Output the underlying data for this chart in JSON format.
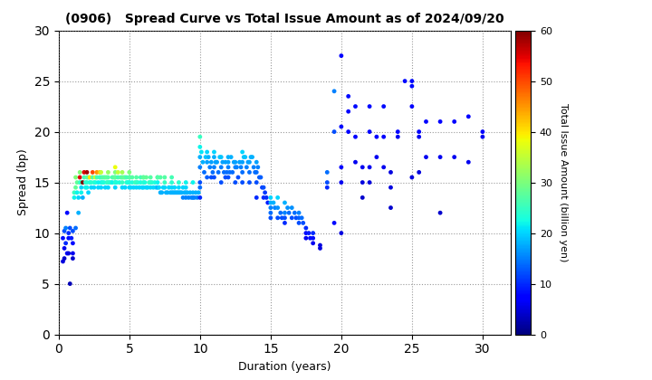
{
  "title": "(0906)   Spread Curve vs Total Issue Amount as of 2024/09/20",
  "xlabel": "Duration (years)",
  "ylabel": "Spread (bp)",
  "colorbar_label": "Total Issue Amount (billion yen)",
  "xlim": [
    0,
    32
  ],
  "ylim": [
    0,
    30
  ],
  "xticks": [
    0,
    5,
    10,
    15,
    20,
    25,
    30
  ],
  "yticks": [
    0,
    5,
    10,
    15,
    20,
    25,
    30
  ],
  "cmap": "jet",
  "clim": [
    0,
    60
  ],
  "colorbar_ticks": [
    0,
    10,
    20,
    30,
    40,
    50,
    60
  ],
  "background_color": "#ffffff",
  "points": [
    [
      0.3,
      7.2,
      5
    ],
    [
      0.3,
      9.5,
      8
    ],
    [
      0.4,
      10.2,
      12
    ],
    [
      0.4,
      8.5,
      6
    ],
    [
      0.4,
      7.5,
      4
    ],
    [
      0.5,
      10.5,
      15
    ],
    [
      0.5,
      9.0,
      10
    ],
    [
      0.6,
      8.0,
      7
    ],
    [
      0.6,
      12.0,
      8
    ],
    [
      0.7,
      10.0,
      10
    ],
    [
      0.7,
      9.5,
      8
    ],
    [
      0.7,
      8.0,
      5
    ],
    [
      0.8,
      5.0,
      3
    ],
    [
      0.8,
      10.5,
      12
    ],
    [
      0.9,
      9.5,
      9
    ],
    [
      1.0,
      10.2,
      12
    ],
    [
      1.0,
      9.0,
      8
    ],
    [
      1.0,
      8.0,
      6
    ],
    [
      1.0,
      7.5,
      4
    ],
    [
      1.1,
      14.0,
      25
    ],
    [
      1.1,
      13.5,
      22
    ],
    [
      1.2,
      10.5,
      14
    ],
    [
      1.2,
      15.5,
      30
    ],
    [
      1.2,
      14.5,
      28
    ],
    [
      1.3,
      15.0,
      28
    ],
    [
      1.3,
      14.0,
      22
    ],
    [
      1.4,
      13.5,
      20
    ],
    [
      1.4,
      12.0,
      18
    ],
    [
      1.5,
      16.0,
      30
    ],
    [
      1.5,
      15.0,
      25
    ],
    [
      1.5,
      15.5,
      55
    ],
    [
      1.6,
      14.0,
      22
    ],
    [
      1.6,
      14.5,
      20
    ],
    [
      1.6,
      15.0,
      25
    ],
    [
      1.7,
      13.5,
      18
    ],
    [
      1.7,
      15.0,
      60
    ],
    [
      1.8,
      15.5,
      26
    ],
    [
      1.8,
      16.0,
      55
    ],
    [
      1.9,
      14.5,
      22
    ],
    [
      1.9,
      15.0,
      24
    ],
    [
      2.0,
      15.5,
      28
    ],
    [
      2.0,
      15.0,
      24
    ],
    [
      2.0,
      14.5,
      22
    ],
    [
      2.0,
      16.0,
      58
    ],
    [
      2.1,
      14.0,
      20
    ],
    [
      2.1,
      15.5,
      27
    ],
    [
      2.2,
      15.0,
      23
    ],
    [
      2.2,
      15.5,
      40
    ],
    [
      2.3,
      14.5,
      20
    ],
    [
      2.3,
      15.0,
      24
    ],
    [
      2.4,
      15.5,
      27
    ],
    [
      2.4,
      16.0,
      50
    ],
    [
      2.5,
      15.0,
      24
    ],
    [
      2.5,
      14.5,
      20
    ],
    [
      2.6,
      15.0,
      23
    ],
    [
      2.6,
      15.5,
      37
    ],
    [
      2.7,
      15.5,
      26
    ],
    [
      2.7,
      16.0,
      45
    ],
    [
      2.8,
      15.0,
      22
    ],
    [
      2.8,
      14.5,
      20
    ],
    [
      2.9,
      15.5,
      25
    ],
    [
      2.9,
      16.0,
      42
    ],
    [
      3.0,
      15.0,
      22
    ],
    [
      3.0,
      15.5,
      25
    ],
    [
      3.0,
      14.5,
      20
    ],
    [
      3.0,
      16.0,
      35
    ],
    [
      3.1,
      15.5,
      27
    ],
    [
      3.1,
      15.0,
      23
    ],
    [
      3.2,
      15.0,
      23
    ],
    [
      3.2,
      15.5,
      27
    ],
    [
      3.3,
      15.5,
      27
    ],
    [
      3.3,
      14.5,
      20
    ],
    [
      3.4,
      15.0,
      24
    ],
    [
      3.4,
      15.5,
      28
    ],
    [
      3.5,
      15.0,
      25
    ],
    [
      3.5,
      15.5,
      27
    ],
    [
      3.5,
      14.5,
      20
    ],
    [
      3.5,
      16.0,
      32
    ],
    [
      3.6,
      15.0,
      24
    ],
    [
      3.7,
      15.0,
      24
    ],
    [
      3.8,
      15.5,
      26
    ],
    [
      3.8,
      15.0,
      22
    ],
    [
      3.9,
      15.5,
      27
    ],
    [
      4.0,
      15.0,
      22
    ],
    [
      4.0,
      15.5,
      25
    ],
    [
      4.0,
      14.5,
      20
    ],
    [
      4.0,
      16.0,
      30
    ],
    [
      4.0,
      15.0,
      24
    ],
    [
      4.0,
      16.5,
      38
    ],
    [
      4.0,
      15.5,
      28
    ],
    [
      4.1,
      15.0,
      23
    ],
    [
      4.2,
      15.5,
      26
    ],
    [
      4.2,
      16.0,
      35
    ],
    [
      4.3,
      15.0,
      23
    ],
    [
      4.4,
      15.5,
      27
    ],
    [
      4.5,
      15.5,
      27
    ],
    [
      4.5,
      14.5,
      20
    ],
    [
      4.5,
      15.0,
      25
    ],
    [
      4.5,
      16.0,
      33
    ],
    [
      4.6,
      15.5,
      28
    ],
    [
      4.7,
      15.5,
      28
    ],
    [
      4.7,
      14.5,
      20
    ],
    [
      4.8,
      15.0,
      24
    ],
    [
      4.8,
      15.5,
      26
    ],
    [
      4.9,
      15.0,
      23
    ],
    [
      5.0,
      15.5,
      26
    ],
    [
      5.0,
      14.5,
      20
    ],
    [
      5.0,
      15.0,
      23
    ],
    [
      5.0,
      16.0,
      30
    ],
    [
      5.0,
      15.5,
      27
    ],
    [
      5.1,
      14.5,
      20
    ],
    [
      5.2,
      15.5,
      27
    ],
    [
      5.2,
      15.0,
      23
    ],
    [
      5.3,
      14.5,
      20
    ],
    [
      5.4,
      15.0,
      25
    ],
    [
      5.5,
      15.0,
      25
    ],
    [
      5.5,
      15.5,
      27
    ],
    [
      5.5,
      14.5,
      20
    ],
    [
      5.6,
      15.0,
      24
    ],
    [
      5.7,
      14.5,
      20
    ],
    [
      5.8,
      15.0,
      23
    ],
    [
      5.8,
      15.5,
      26
    ],
    [
      5.9,
      14.5,
      20
    ],
    [
      6.0,
      15.5,
      26
    ],
    [
      6.0,
      14.5,
      20
    ],
    [
      6.0,
      15.0,
      24
    ],
    [
      6.0,
      15.5,
      28
    ],
    [
      6.1,
      15.0,
      23
    ],
    [
      6.2,
      15.5,
      28
    ],
    [
      6.2,
      14.5,
      20
    ],
    [
      6.3,
      14.5,
      20
    ],
    [
      6.4,
      15.0,
      25
    ],
    [
      6.5,
      15.0,
      25
    ],
    [
      6.5,
      15.5,
      27
    ],
    [
      6.5,
      14.5,
      20
    ],
    [
      6.6,
      15.0,
      24
    ],
    [
      6.7,
      14.5,
      20
    ],
    [
      6.8,
      15.0,
      23
    ],
    [
      6.9,
      14.5,
      20
    ],
    [
      7.0,
      15.5,
      26
    ],
    [
      7.0,
      14.5,
      18
    ],
    [
      7.0,
      15.0,
      22
    ],
    [
      7.0,
      15.5,
      27
    ],
    [
      7.1,
      14.5,
      20
    ],
    [
      7.2,
      15.5,
      27
    ],
    [
      7.2,
      14.0,
      18
    ],
    [
      7.3,
      14.0,
      18
    ],
    [
      7.4,
      14.5,
      20
    ],
    [
      7.5,
      15.0,
      25
    ],
    [
      7.5,
      14.5,
      20
    ],
    [
      7.5,
      15.5,
      27
    ],
    [
      7.6,
      14.0,
      18
    ],
    [
      7.7,
      14.0,
      18
    ],
    [
      7.8,
      14.5,
      20
    ],
    [
      7.9,
      14.0,
      18
    ],
    [
      8.0,
      14.5,
      20
    ],
    [
      8.0,
      14.0,
      18
    ],
    [
      8.0,
      15.0,
      24
    ],
    [
      8.0,
      15.5,
      26
    ],
    [
      8.1,
      14.0,
      18
    ],
    [
      8.2,
      14.5,
      20
    ],
    [
      8.2,
      14.0,
      18
    ],
    [
      8.3,
      14.0,
      18
    ],
    [
      8.4,
      14.0,
      18
    ],
    [
      8.5,
      14.5,
      20
    ],
    [
      8.5,
      14.0,
      18
    ],
    [
      8.5,
      15.0,
      24
    ],
    [
      8.6,
      14.0,
      18
    ],
    [
      8.7,
      14.0,
      18
    ],
    [
      8.8,
      13.5,
      15
    ],
    [
      8.8,
      14.5,
      20
    ],
    [
      8.9,
      14.0,
      18
    ],
    [
      9.0,
      14.0,
      18
    ],
    [
      9.0,
      13.5,
      15
    ],
    [
      9.0,
      14.5,
      20
    ],
    [
      9.0,
      15.0,
      22
    ],
    [
      9.1,
      14.0,
      18
    ],
    [
      9.2,
      13.5,
      15
    ],
    [
      9.3,
      14.0,
      18
    ],
    [
      9.4,
      13.5,
      15
    ],
    [
      9.5,
      13.5,
      15
    ],
    [
      9.5,
      14.0,
      18
    ],
    [
      9.5,
      15.0,
      22
    ],
    [
      9.6,
      13.5,
      15
    ],
    [
      9.7,
      14.0,
      18
    ],
    [
      9.8,
      13.5,
      15
    ],
    [
      9.9,
      14.0,
      18
    ],
    [
      10.0,
      19.5,
      25
    ],
    [
      10.0,
      18.5,
      22
    ],
    [
      10.0,
      17.5,
      18
    ],
    [
      10.0,
      16.5,
      15
    ],
    [
      10.0,
      15.0,
      12
    ],
    [
      10.0,
      13.5,
      10
    ],
    [
      10.0,
      14.5,
      14
    ],
    [
      10.1,
      18.0,
      21
    ],
    [
      10.2,
      17.0,
      18
    ],
    [
      10.3,
      16.0,
      14
    ],
    [
      10.4,
      17.5,
      19
    ],
    [
      10.5,
      18.0,
      20
    ],
    [
      10.5,
      17.0,
      17
    ],
    [
      10.5,
      15.5,
      13
    ],
    [
      10.6,
      17.5,
      18
    ],
    [
      10.7,
      16.5,
      15
    ],
    [
      10.8,
      15.5,
      12
    ],
    [
      10.8,
      17.0,
      17
    ],
    [
      10.9,
      16.0,
      14
    ],
    [
      11.0,
      17.5,
      18
    ],
    [
      11.0,
      16.5,
      15
    ],
    [
      11.0,
      15.5,
      12
    ],
    [
      11.0,
      18.0,
      20
    ],
    [
      11.1,
      17.0,
      17
    ],
    [
      11.2,
      17.0,
      17
    ],
    [
      11.3,
      16.0,
      14
    ],
    [
      11.4,
      17.5,
      19
    ],
    [
      11.5,
      17.5,
      19
    ],
    [
      11.5,
      16.5,
      15
    ],
    [
      11.5,
      15.0,
      12
    ],
    [
      11.6,
      17.0,
      17
    ],
    [
      11.7,
      16.0,
      14
    ],
    [
      11.8,
      15.5,
      12
    ],
    [
      11.8,
      17.0,
      17
    ],
    [
      11.9,
      16.0,
      14
    ],
    [
      12.0,
      17.0,
      17
    ],
    [
      12.0,
      16.5,
      15
    ],
    [
      12.0,
      15.5,
      12
    ],
    [
      12.0,
      17.5,
      18
    ],
    [
      12.1,
      16.0,
      14
    ],
    [
      12.2,
      17.5,
      18
    ],
    [
      12.3,
      16.0,
      14
    ],
    [
      12.4,
      17.0,
      17
    ],
    [
      12.5,
      17.0,
      17
    ],
    [
      12.5,
      16.5,
      15
    ],
    [
      12.5,
      15.0,
      12
    ],
    [
      12.6,
      16.5,
      15
    ],
    [
      12.7,
      15.5,
      12
    ],
    [
      12.8,
      17.0,
      17
    ],
    [
      12.9,
      16.5,
      15
    ],
    [
      13.0,
      18.0,
      20
    ],
    [
      13.0,
      17.0,
      17
    ],
    [
      13.0,
      16.0,
      14
    ],
    [
      13.0,
      15.0,
      12
    ],
    [
      13.1,
      17.5,
      19
    ],
    [
      13.2,
      17.5,
      19
    ],
    [
      13.3,
      16.5,
      15
    ],
    [
      13.4,
      17.0,
      17
    ],
    [
      13.5,
      17.0,
      17
    ],
    [
      13.5,
      16.0,
      14
    ],
    [
      13.5,
      15.0,
      12
    ],
    [
      13.6,
      17.5,
      18
    ],
    [
      13.7,
      17.5,
      18
    ],
    [
      13.8,
      16.5,
      15
    ],
    [
      13.9,
      16.0,
      14
    ],
    [
      14.0,
      17.0,
      17
    ],
    [
      14.0,
      16.0,
      14
    ],
    [
      14.0,
      15.0,
      12
    ],
    [
      14.0,
      13.5,
      10
    ],
    [
      14.1,
      16.5,
      15
    ],
    [
      14.2,
      15.5,
      13
    ],
    [
      14.3,
      15.5,
      13
    ],
    [
      14.4,
      14.5,
      11
    ],
    [
      14.5,
      14.5,
      12
    ],
    [
      14.5,
      13.5,
      10
    ],
    [
      14.6,
      14.0,
      11
    ],
    [
      14.7,
      13.5,
      10
    ],
    [
      14.8,
      13.0,
      9
    ],
    [
      15.0,
      13.5,
      20
    ],
    [
      15.0,
      13.0,
      18
    ],
    [
      15.0,
      12.5,
      15
    ],
    [
      15.0,
      12.0,
      14
    ],
    [
      15.0,
      11.5,
      12
    ],
    [
      15.2,
      13.0,
      18
    ],
    [
      15.3,
      12.5,
      15
    ],
    [
      15.5,
      13.5,
      20
    ],
    [
      15.5,
      12.5,
      16
    ],
    [
      15.5,
      11.5,
      12
    ],
    [
      15.7,
      12.0,
      14
    ],
    [
      15.8,
      11.5,
      12
    ],
    [
      16.0,
      13.0,
      18
    ],
    [
      16.0,
      12.0,
      15
    ],
    [
      16.0,
      11.5,
      12
    ],
    [
      16.0,
      11.0,
      10
    ],
    [
      16.2,
      12.5,
      16
    ],
    [
      16.3,
      12.0,
      14
    ],
    [
      16.5,
      12.5,
      16
    ],
    [
      16.5,
      11.5,
      12
    ],
    [
      16.7,
      12.0,
      14
    ],
    [
      16.8,
      11.5,
      12
    ],
    [
      17.0,
      12.0,
      15
    ],
    [
      17.0,
      11.5,
      13
    ],
    [
      17.0,
      11.0,
      12
    ],
    [
      17.2,
      11.5,
      14
    ],
    [
      17.3,
      11.0,
      12
    ],
    [
      17.5,
      10.5,
      10
    ],
    [
      17.5,
      10.0,
      8
    ],
    [
      17.5,
      9.5,
      6
    ],
    [
      17.7,
      10.0,
      9
    ],
    [
      17.8,
      9.5,
      8
    ],
    [
      18.0,
      9.5,
      8
    ],
    [
      18.0,
      10.0,
      10
    ],
    [
      18.0,
      9.0,
      6
    ],
    [
      18.5,
      8.5,
      5
    ],
    [
      18.5,
      8.8,
      5
    ],
    [
      19.0,
      15.0,
      12
    ],
    [
      19.0,
      14.5,
      10
    ],
    [
      19.0,
      16.0,
      14
    ],
    [
      19.5,
      24.0,
      15
    ],
    [
      19.5,
      20.0,
      12
    ],
    [
      19.5,
      11.0,
      8
    ],
    [
      20.0,
      27.5,
      7
    ],
    [
      20.0,
      20.5,
      8
    ],
    [
      20.0,
      16.5,
      7
    ],
    [
      20.0,
      15.0,
      6
    ],
    [
      20.0,
      10.0,
      5
    ],
    [
      20.5,
      23.5,
      8
    ],
    [
      20.5,
      22.0,
      7
    ],
    [
      20.5,
      20.0,
      7
    ],
    [
      21.0,
      22.5,
      8
    ],
    [
      21.0,
      19.5,
      7
    ],
    [
      21.0,
      17.0,
      6
    ],
    [
      21.5,
      16.5,
      6
    ],
    [
      21.5,
      15.0,
      5
    ],
    [
      21.5,
      13.5,
      4
    ],
    [
      22.0,
      22.5,
      8
    ],
    [
      22.0,
      20.0,
      7
    ],
    [
      22.0,
      16.5,
      6
    ],
    [
      22.0,
      15.0,
      5
    ],
    [
      22.5,
      19.5,
      7
    ],
    [
      22.5,
      17.5,
      6
    ],
    [
      23.0,
      22.5,
      8
    ],
    [
      23.0,
      19.5,
      7
    ],
    [
      23.0,
      16.5,
      6
    ],
    [
      23.5,
      16.0,
      5
    ],
    [
      23.5,
      14.5,
      5
    ],
    [
      23.5,
      12.5,
      4
    ],
    [
      24.0,
      20.0,
      7
    ],
    [
      24.0,
      19.5,
      6
    ],
    [
      24.5,
      25.0,
      8
    ],
    [
      25.0,
      25.0,
      8
    ],
    [
      25.0,
      24.5,
      8
    ],
    [
      25.0,
      22.5,
      7
    ],
    [
      25.0,
      15.5,
      5
    ],
    [
      25.5,
      20.0,
      7
    ],
    [
      25.5,
      19.5,
      6
    ],
    [
      25.5,
      16.0,
      5
    ],
    [
      26.0,
      21.0,
      7
    ],
    [
      26.0,
      17.5,
      6
    ],
    [
      27.0,
      21.0,
      7
    ],
    [
      27.0,
      17.5,
      6
    ],
    [
      27.0,
      12.0,
      4
    ],
    [
      28.0,
      17.5,
      6
    ],
    [
      28.0,
      21.0,
      7
    ],
    [
      29.0,
      21.5,
      7
    ],
    [
      29.0,
      17.0,
      6
    ],
    [
      30.0,
      20.0,
      7
    ],
    [
      30.0,
      19.5,
      6
    ]
  ]
}
